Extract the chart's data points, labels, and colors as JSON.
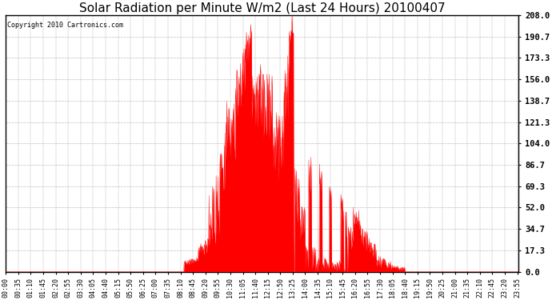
{
  "title": "Solar Radiation per Minute W/m2 (Last 24 Hours) 20100407",
  "copyright_text": "Copyright 2010 Cartronics.com",
  "bar_color": "#FF0000",
  "background_color": "#FFFFFF",
  "plot_bg_color": "#FFFFFF",
  "grid_color": "#BBBBBB",
  "dashed_line_color": "#FF0000",
  "yticks": [
    0.0,
    17.3,
    34.7,
    52.0,
    69.3,
    86.7,
    104.0,
    121.3,
    138.7,
    156.0,
    173.3,
    190.7,
    208.0
  ],
  "ymax": 208.0,
  "ymin": 0.0,
  "title_fontsize": 11,
  "xlabel_fontsize": 6,
  "ylabel_fontsize": 7.5,
  "figwidth": 6.9,
  "figheight": 3.75,
  "dpi": 100
}
